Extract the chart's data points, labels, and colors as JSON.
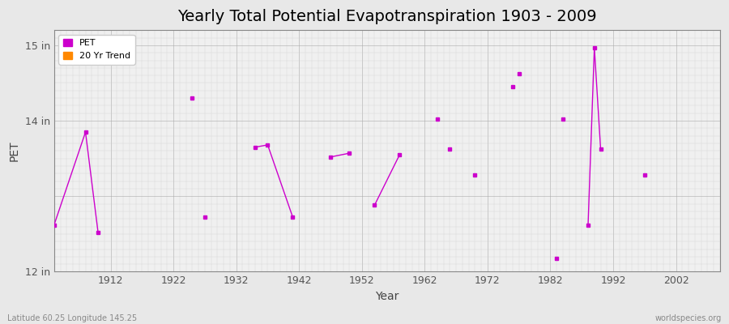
{
  "title": "Yearly Total Potential Evapotranspiration 1903 - 2009",
  "xlabel": "Year",
  "ylabel": "PET",
  "xlim": [
    1903,
    2009
  ],
  "ylim": [
    12.0,
    15.2
  ],
  "ytick_positions": [
    12,
    13,
    14,
    15
  ],
  "ytick_labels": [
    "12 in",
    "",
    "14 in",
    "15 in"
  ],
  "xticks": [
    1912,
    1922,
    1932,
    1942,
    1952,
    1962,
    1972,
    1982,
    1992,
    2002
  ],
  "fig_bg_color": "#e8e8e8",
  "plot_bg_color": "#f0f0f0",
  "line_color": "#cc00cc",
  "title_fontsize": 14,
  "footer_left": "Latitude 60.25 Longitude 145.25",
  "footer_right": "worldspecies.org",
  "legend_labels": [
    "PET",
    "20 Yr Trend"
  ],
  "legend_colors": [
    "#cc00cc",
    "#ff8800"
  ],
  "pet_data": [
    [
      1903,
      12.62
    ],
    [
      1908,
      13.85
    ],
    [
      1910,
      12.52
    ],
    [
      1925,
      14.3
    ],
    [
      1927,
      12.72
    ],
    [
      1935,
      13.65
    ],
    [
      1937,
      13.68
    ],
    [
      1941,
      12.72
    ],
    [
      1947,
      13.52
    ],
    [
      1950,
      13.57
    ],
    [
      1954,
      12.88
    ],
    [
      1958,
      13.55
    ],
    [
      1964,
      14.02
    ],
    [
      1966,
      13.62
    ],
    [
      1970,
      13.28
    ],
    [
      1976,
      14.45
    ],
    [
      1977,
      14.62
    ],
    [
      1983,
      12.18
    ],
    [
      1984,
      14.02
    ],
    [
      1988,
      12.62
    ],
    [
      1989,
      14.97
    ],
    [
      1990,
      13.62
    ],
    [
      1997,
      13.28
    ]
  ],
  "connected_segments": [
    [
      [
        1903,
        12.62
      ],
      [
        1908,
        13.85
      ],
      [
        1910,
        12.52
      ]
    ],
    [
      [
        1935,
        13.65
      ],
      [
        1937,
        13.68
      ],
      [
        1941,
        12.72
      ]
    ],
    [
      [
        1947,
        13.52
      ],
      [
        1950,
        13.57
      ]
    ],
    [
      [
        1954,
        12.88
      ],
      [
        1958,
        13.55
      ]
    ],
    [
      [
        1988,
        12.62
      ],
      [
        1989,
        14.97
      ],
      [
        1990,
        13.62
      ]
    ]
  ]
}
